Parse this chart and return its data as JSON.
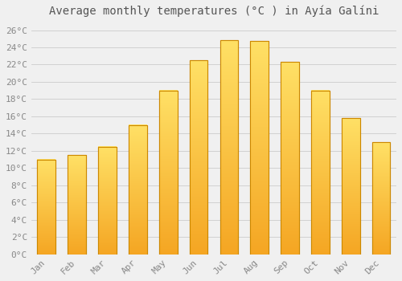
{
  "title": "Average monthly temperatures (°C ) in Ayía Galíni",
  "months": [
    "Jan",
    "Feb",
    "Mar",
    "Apr",
    "May",
    "Jun",
    "Jul",
    "Aug",
    "Sep",
    "Oct",
    "Nov",
    "Dec"
  ],
  "values": [
    11,
    11.5,
    12.5,
    15,
    19,
    22.5,
    24.8,
    24.7,
    22.3,
    19,
    15.8,
    13
  ],
  "bar_color_top": "#FFD966",
  "bar_color_bottom": "#F5A623",
  "bar_edge_color": "#CC8800",
  "background_color": "#F0F0F0",
  "grid_color": "#CCCCCC",
  "ytick_labels": [
    "0°C",
    "2°C",
    "4°C",
    "6°C",
    "8°C",
    "10°C",
    "12°C",
    "14°C",
    "16°C",
    "18°C",
    "20°C",
    "22°C",
    "24°C",
    "26°C"
  ],
  "ytick_values": [
    0,
    2,
    4,
    6,
    8,
    10,
    12,
    14,
    16,
    18,
    20,
    22,
    24,
    26
  ],
  "ylim": [
    0,
    27
  ],
  "title_fontsize": 10,
  "tick_fontsize": 8,
  "title_color": "#555555",
  "tick_color": "#888888",
  "font_family": "monospace",
  "bar_width": 0.6
}
